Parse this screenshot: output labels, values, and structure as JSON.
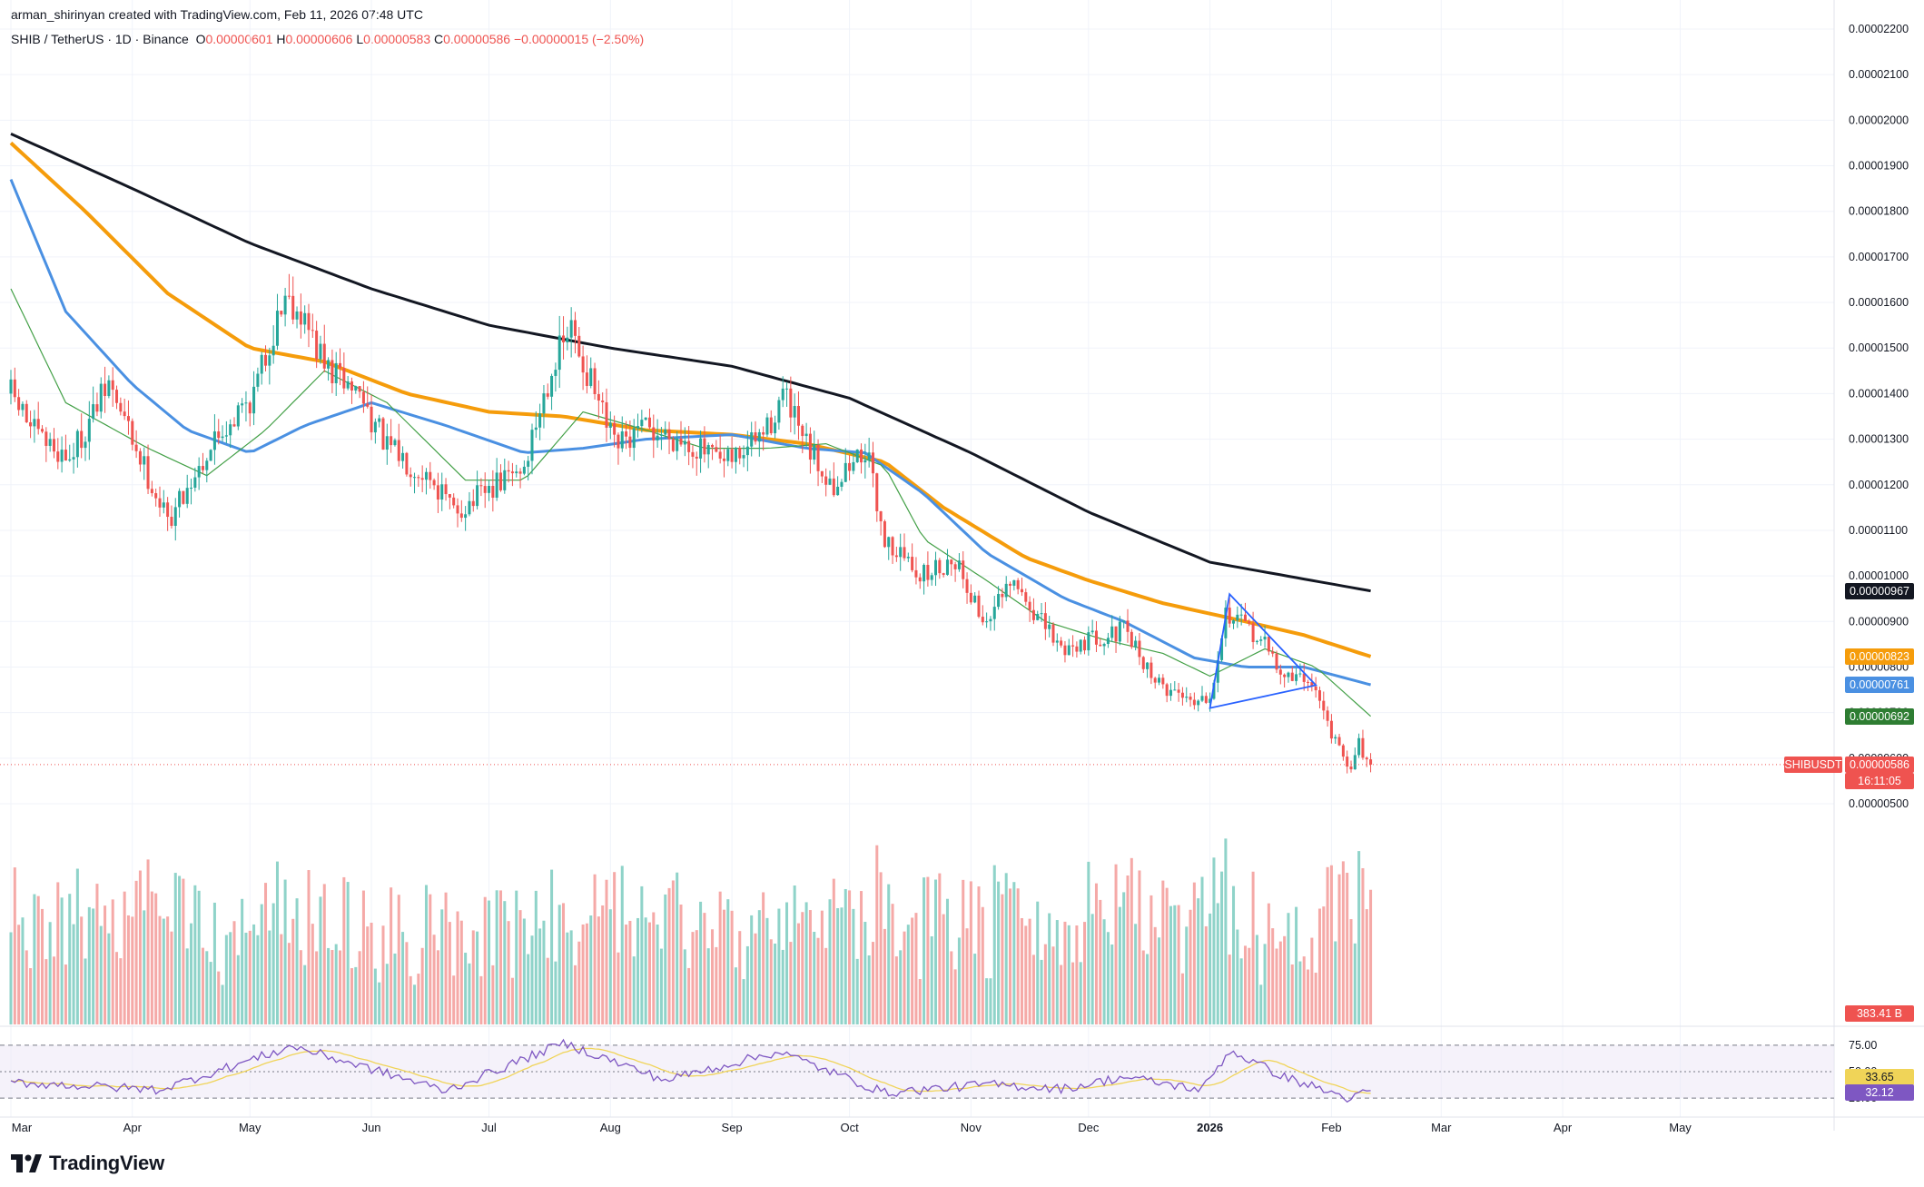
{
  "header": {
    "credit": "arman_shirinyan created with TradingView.com, Feb 11, 2026 07:48 UTC",
    "symbol": "SHIB / TetherUS · 1D · Binance",
    "open_label": "O",
    "open": "0.00000601",
    "high_label": "H",
    "high": "0.00000606",
    "low_label": "L",
    "low": "0.00000583",
    "close_label": "C",
    "close": "0.00000586",
    "change": "−0.00000015 (−2.50%)"
  },
  "colors": {
    "up": "#26a69a",
    "down": "#ef5350",
    "up_volume": "#8fd3c9",
    "down_volume": "#f5a9a7",
    "ma_black": "#131722",
    "ma_orange": "#f59c0b",
    "ma_blue": "#4a90e2",
    "ma_green": "#43a047",
    "triangle": "#2962ff",
    "rsi_line": "#7e57c2",
    "rsi_ma": "#f0d458",
    "rsi_band": "#ede7f6"
  },
  "price_tags": [
    {
      "name": "ma-200",
      "text": "0.00000967",
      "value": 9.67e-06,
      "bg": "#131722"
    },
    {
      "name": "ma-100",
      "text": "0.00000823",
      "value": 8.23e-06,
      "bg": "#f59c0b"
    },
    {
      "name": "ma-50",
      "text": "0.00000761",
      "value": 7.61e-06,
      "bg": "#4a90e2"
    },
    {
      "name": "ma-20",
      "text": "0.00000692",
      "value": 6.92e-06,
      "bg": "#2e7d32"
    }
  ],
  "last_price": {
    "symbol": "SHIBUSDT",
    "text": "0.00000586",
    "value": 5.86e-06,
    "countdown": "16:11:05"
  },
  "volume_tag": "383.41 B",
  "rsi_tags": {
    "ma": "33.65",
    "rsi": "32.12"
  },
  "rsi_levels": {
    "upper": "75.00",
    "middle": "50.00",
    "lower": "25.00"
  },
  "logo": {
    "text": "TradingView"
  },
  "chart_data": {
    "type": "candlestick",
    "title": "SHIB / TetherUS · 1D · Binance",
    "y_unit": "USDT",
    "ylim": [
      3.9e-06,
      2.23e-05
    ],
    "yticks": [
      "0.00000500",
      "0.00000600",
      "0.00000700",
      "0.00000800",
      "0.00000900",
      "0.00001000",
      "0.00001100",
      "0.00001200",
      "0.00001300",
      "0.00001400",
      "0.00001500",
      "0.00001600",
      "0.00001700",
      "0.00001800",
      "0.00001900",
      "0.00002000",
      "0.00002100",
      "0.00002200"
    ],
    "x_months": [
      "Mar",
      "Apr",
      "May",
      "Jun",
      "Jul",
      "Aug",
      "Sep",
      "Oct",
      "Nov",
      "Dec",
      "2026",
      "Jan",
      "Feb",
      "Mar",
      "Apr",
      "May"
    ],
    "x_start": "2025-03-01",
    "x_end": "2026-05-31",
    "last_date": "2026-02-11",
    "price_anchors": [
      [
        "2025-03-01",
        1.4e-05
      ],
      [
        "2025-03-08",
        1.3e-05
      ],
      [
        "2025-03-16",
        1.26e-05
      ],
      [
        "2025-03-26",
        1.42e-05
      ],
      [
        "2025-04-06",
        1.2e-05
      ],
      [
        "2025-04-10",
        1.12e-05
      ],
      [
        "2025-04-22",
        1.3e-05
      ],
      [
        "2025-05-02",
        1.4e-05
      ],
      [
        "2025-05-10",
        1.62e-05
      ],
      [
        "2025-05-14",
        1.58e-05
      ],
      [
        "2025-05-20",
        1.46e-05
      ],
      [
        "2025-05-29",
        1.4e-05
      ],
      [
        "2025-06-05",
        1.28e-05
      ],
      [
        "2025-06-16",
        1.22e-05
      ],
      [
        "2025-06-22",
        1.14e-05
      ],
      [
        "2025-06-30",
        1.18e-05
      ],
      [
        "2025-07-10",
        1.24e-05
      ],
      [
        "2025-07-17",
        1.46e-05
      ],
      [
        "2025-07-22",
        1.54e-05
      ],
      [
        "2025-08-02",
        1.28e-05
      ],
      [
        "2025-08-10",
        1.32e-05
      ],
      [
        "2025-08-20",
        1.3e-05
      ],
      [
        "2025-08-30",
        1.24e-05
      ],
      [
        "2025-09-10",
        1.32e-05
      ],
      [
        "2025-09-14",
        1.4e-05
      ],
      [
        "2025-09-20",
        1.28e-05
      ],
      [
        "2025-09-27",
        1.2e-05
      ],
      [
        "2025-10-05",
        1.28e-05
      ],
      [
        "2025-10-10",
        1.08e-05
      ],
      [
        "2025-10-20",
        1e-05
      ],
      [
        "2025-10-28",
        1.04e-05
      ],
      [
        "2025-11-04",
        9e-06
      ],
      [
        "2025-11-12",
        9.8e-06
      ],
      [
        "2025-11-24",
        8.4e-06
      ],
      [
        "2025-12-01",
        8.6e-06
      ],
      [
        "2025-12-10",
        8.8e-06
      ],
      [
        "2025-12-19",
        7.6e-06
      ],
      [
        "2025-12-28",
        7.3e-06
      ],
      [
        "2026-01-01",
        7.4e-06
      ],
      [
        "2026-01-05",
        9.2e-06
      ],
      [
        "2026-01-14",
        8.6e-06
      ],
      [
        "2026-01-20",
        7.8e-06
      ],
      [
        "2026-01-27",
        7.7e-06
      ],
      [
        "2026-01-31",
        6.8e-06
      ],
      [
        "2026-02-05",
        5.7e-06
      ],
      [
        "2026-02-08",
        6.3e-06
      ],
      [
        "2026-02-11",
        5.86e-06
      ]
    ],
    "moving_averages": [
      {
        "name": "ma-200",
        "points": [
          [
            "2025-03-01",
            1.97e-05
          ],
          [
            "2025-04-01",
            1.85e-05
          ],
          [
            "2025-05-01",
            1.73e-05
          ],
          [
            "2025-06-01",
            1.63e-05
          ],
          [
            "2025-07-01",
            1.55e-05
          ],
          [
            "2025-08-01",
            1.5e-05
          ],
          [
            "2025-09-01",
            1.46e-05
          ],
          [
            "2025-10-01",
            1.39e-05
          ],
          [
            "2025-11-01",
            1.27e-05
          ],
          [
            "2025-12-01",
            1.14e-05
          ],
          [
            "2026-01-01",
            1.03e-05
          ],
          [
            "2026-02-11",
            9.67e-06
          ]
        ]
      },
      {
        "name": "ma-100",
        "points": [
          [
            "2025-03-01",
            1.95e-05
          ],
          [
            "2025-03-20",
            1.8e-05
          ],
          [
            "2025-04-10",
            1.62e-05
          ],
          [
            "2025-05-01",
            1.5e-05
          ],
          [
            "2025-05-20",
            1.47e-05
          ],
          [
            "2025-06-10",
            1.4e-05
          ],
          [
            "2025-07-01",
            1.36e-05
          ],
          [
            "2025-07-20",
            1.35e-05
          ],
          [
            "2025-08-10",
            1.32e-05
          ],
          [
            "2025-09-01",
            1.31e-05
          ],
          [
            "2025-09-20",
            1.29e-05
          ],
          [
            "2025-10-10",
            1.25e-05
          ],
          [
            "2025-10-25",
            1.15e-05
          ],
          [
            "2025-11-15",
            1.04e-05
          ],
          [
            "2025-12-01",
            9.9e-06
          ],
          [
            "2025-12-20",
            9.4e-06
          ],
          [
            "2026-01-10",
            9e-06
          ],
          [
            "2026-01-25",
            8.7e-06
          ],
          [
            "2026-02-11",
            8.23e-06
          ]
        ]
      },
      {
        "name": "ma-50",
        "points": [
          [
            "2025-03-01",
            1.87e-05
          ],
          [
            "2025-03-15",
            1.58e-05
          ],
          [
            "2025-04-01",
            1.42e-05
          ],
          [
            "2025-04-15",
            1.32e-05
          ],
          [
            "2025-05-01",
            1.27e-05
          ],
          [
            "2025-05-15",
            1.33e-05
          ],
          [
            "2025-06-01",
            1.38e-05
          ],
          [
            "2025-06-20",
            1.33e-05
          ],
          [
            "2025-07-10",
            1.27e-05
          ],
          [
            "2025-07-25",
            1.28e-05
          ],
          [
            "2025-08-10",
            1.3e-05
          ],
          [
            "2025-09-01",
            1.31e-05
          ],
          [
            "2025-09-20",
            1.28e-05
          ],
          [
            "2025-10-05",
            1.27e-05
          ],
          [
            "2025-10-20",
            1.18e-05
          ],
          [
            "2025-11-05",
            1.05e-05
          ],
          [
            "2025-11-25",
            9.5e-06
          ],
          [
            "2025-12-10",
            9e-06
          ],
          [
            "2025-12-28",
            8.2e-06
          ],
          [
            "2026-01-10",
            8e-06
          ],
          [
            "2026-01-25",
            8e-06
          ],
          [
            "2026-02-11",
            7.61e-06
          ]
        ]
      },
      {
        "name": "ma-20",
        "points": [
          [
            "2025-03-01",
            1.63e-05
          ],
          [
            "2025-03-15",
            1.38e-05
          ],
          [
            "2025-04-05",
            1.28e-05
          ],
          [
            "2025-04-20",
            1.22e-05
          ],
          [
            "2025-05-05",
            1.32e-05
          ],
          [
            "2025-05-20",
            1.45e-05
          ],
          [
            "2025-06-05",
            1.38e-05
          ],
          [
            "2025-06-25",
            1.21e-05
          ],
          [
            "2025-07-10",
            1.21e-05
          ],
          [
            "2025-07-25",
            1.36e-05
          ],
          [
            "2025-08-10",
            1.32e-05
          ],
          [
            "2025-08-25",
            1.28e-05
          ],
          [
            "2025-09-10",
            1.28e-05
          ],
          [
            "2025-09-25",
            1.29e-05
          ],
          [
            "2025-10-10",
            1.24e-05
          ],
          [
            "2025-10-20",
            1.08e-05
          ],
          [
            "2025-11-05",
            9.9e-06
          ],
          [
            "2025-11-20",
            9e-06
          ],
          [
            "2025-12-05",
            8.6e-06
          ],
          [
            "2025-12-20",
            8.3e-06
          ],
          [
            "2026-01-01",
            7.8e-06
          ],
          [
            "2026-01-15",
            8.4e-06
          ],
          [
            "2026-01-28",
            8e-06
          ],
          [
            "2026-02-11",
            6.92e-06
          ]
        ]
      }
    ],
    "triangle_pattern": [
      [
        "2026-01-06",
        9.6e-06
      ],
      [
        "2026-01-28",
        7.6e-06
      ],
      [
        "2026-01-01",
        7.1e-06
      ]
    ],
    "volume_unit": "B",
    "volume_last": 383.41,
    "rsi": {
      "period_levels": [
        75,
        50,
        25
      ],
      "ylim": [
        20,
        80
      ],
      "anchors": [
        [
          "2025-03-01",
          40
        ],
        [
          "2025-04-08",
          33
        ],
        [
          "2025-05-12",
          74
        ],
        [
          "2025-06-20",
          32
        ],
        [
          "2025-07-20",
          77
        ],
        [
          "2025-08-15",
          42
        ],
        [
          "2025-09-13",
          69
        ],
        [
          "2025-10-10",
          30
        ],
        [
          "2025-11-05",
          38
        ],
        [
          "2025-11-25",
          34
        ],
        [
          "2025-12-10",
          45
        ],
        [
          "2025-12-30",
          33
        ],
        [
          "2026-01-06",
          70
        ],
        [
          "2026-01-20",
          45
        ],
        [
          "2026-02-06",
          24
        ],
        [
          "2026-02-11",
          32.12
        ]
      ],
      "ma_last": 33.65
    }
  }
}
